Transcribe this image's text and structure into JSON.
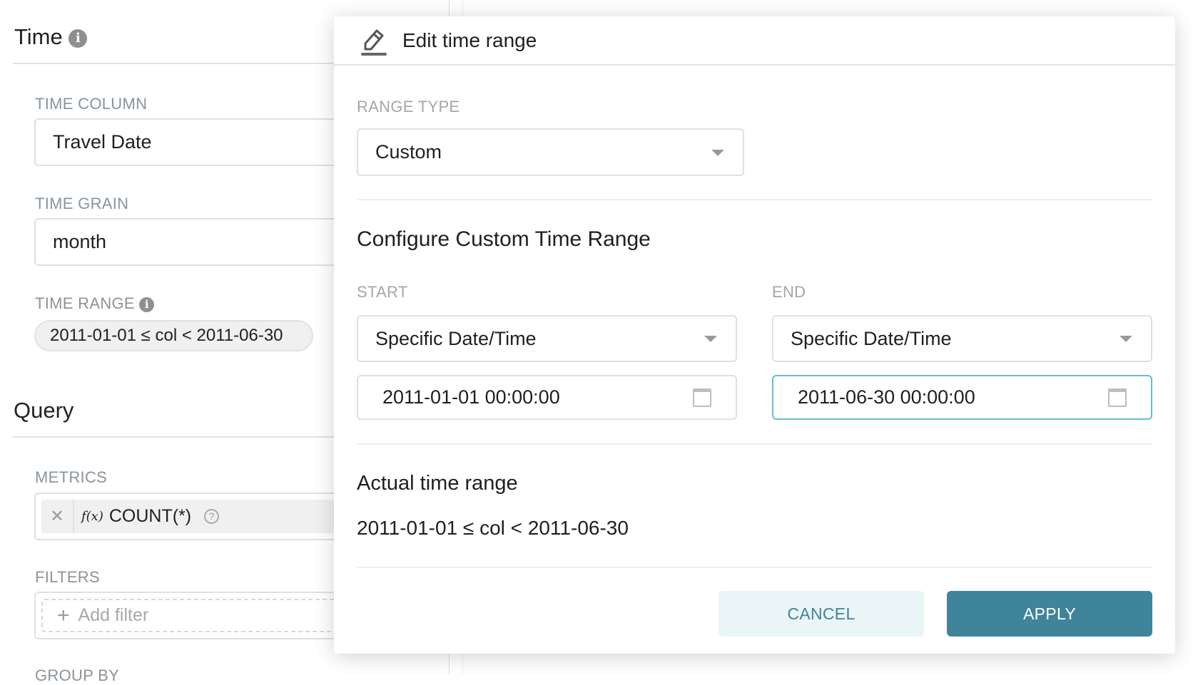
{
  "left": {
    "time_title": "Time",
    "time_column_label": "TIME COLUMN",
    "time_column_value": "Travel Date",
    "time_grain_label": "TIME GRAIN",
    "time_grain_value": "month",
    "time_range_label": "TIME RANGE",
    "time_range_value": "2011-01-01 ≤ col < 2011-06-30",
    "query_title": "Query",
    "metrics_label": "METRICS",
    "metric_fx": "f(x)",
    "metric_value": "COUNT(*)",
    "filters_label": "FILTERS",
    "add_filter": "Add filter",
    "group_by_label": "GROUP BY"
  },
  "popover": {
    "title": "Edit time range",
    "range_type_label": "RANGE TYPE",
    "range_type_value": "Custom",
    "configure_title": "Configure Custom Time Range",
    "start_label": "START",
    "start_mode": "Specific Date/Time",
    "start_value": "2011-01-01 00:00:00",
    "end_label": "END",
    "end_mode": "Specific Date/Time",
    "end_value": "2011-06-30 00:00:00",
    "actual_title": "Actual time range",
    "actual_value": "2011-01-01 ≤ col < 2011-06-30",
    "cancel": "CANCEL",
    "apply": "APPLY"
  },
  "colors": {
    "primary": "#3f849b",
    "cancel_bg": "#eaf5f8",
    "focus": "#66bcd6"
  }
}
